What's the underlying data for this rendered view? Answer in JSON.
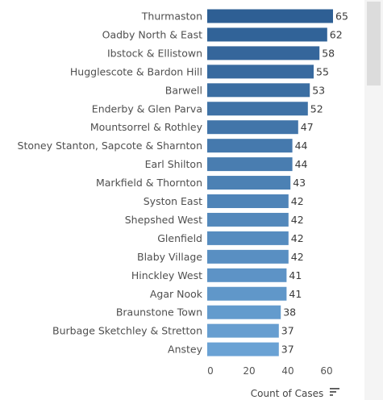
{
  "chart_data": {
    "type": "bar",
    "orientation": "horizontal",
    "categories": [
      "Thurmaston",
      "Oadby North & East",
      "Ibstock & Ellistown",
      "Hugglescote & Bardon Hill",
      "Barwell",
      "Enderby & Glen Parva",
      "Mountsorrel & Rothley",
      "Stoney Stanton, Sapcote & Sharnton",
      "Earl Shilton",
      "Markfield & Thornton",
      "Syston East",
      "Shepshed West",
      "Glenfield",
      "Blaby Village",
      "Hinckley West",
      "Agar Nook",
      "Braunstone Town",
      "Burbage Sketchley & Stretton",
      "Anstey"
    ],
    "values": [
      65,
      62,
      58,
      55,
      53,
      52,
      47,
      44,
      44,
      43,
      42,
      42,
      42,
      42,
      41,
      41,
      38,
      37,
      37
    ],
    "xlabel": "Count of Cases",
    "xticks": [
      0,
      20,
      40,
      60
    ],
    "xlim": [
      0,
      70
    ],
    "bar_color_range": [
      "#2e5f94",
      "#6aa2d4"
    ],
    "grid": false
  },
  "icons": {
    "sort": "sort-descending-icon"
  }
}
